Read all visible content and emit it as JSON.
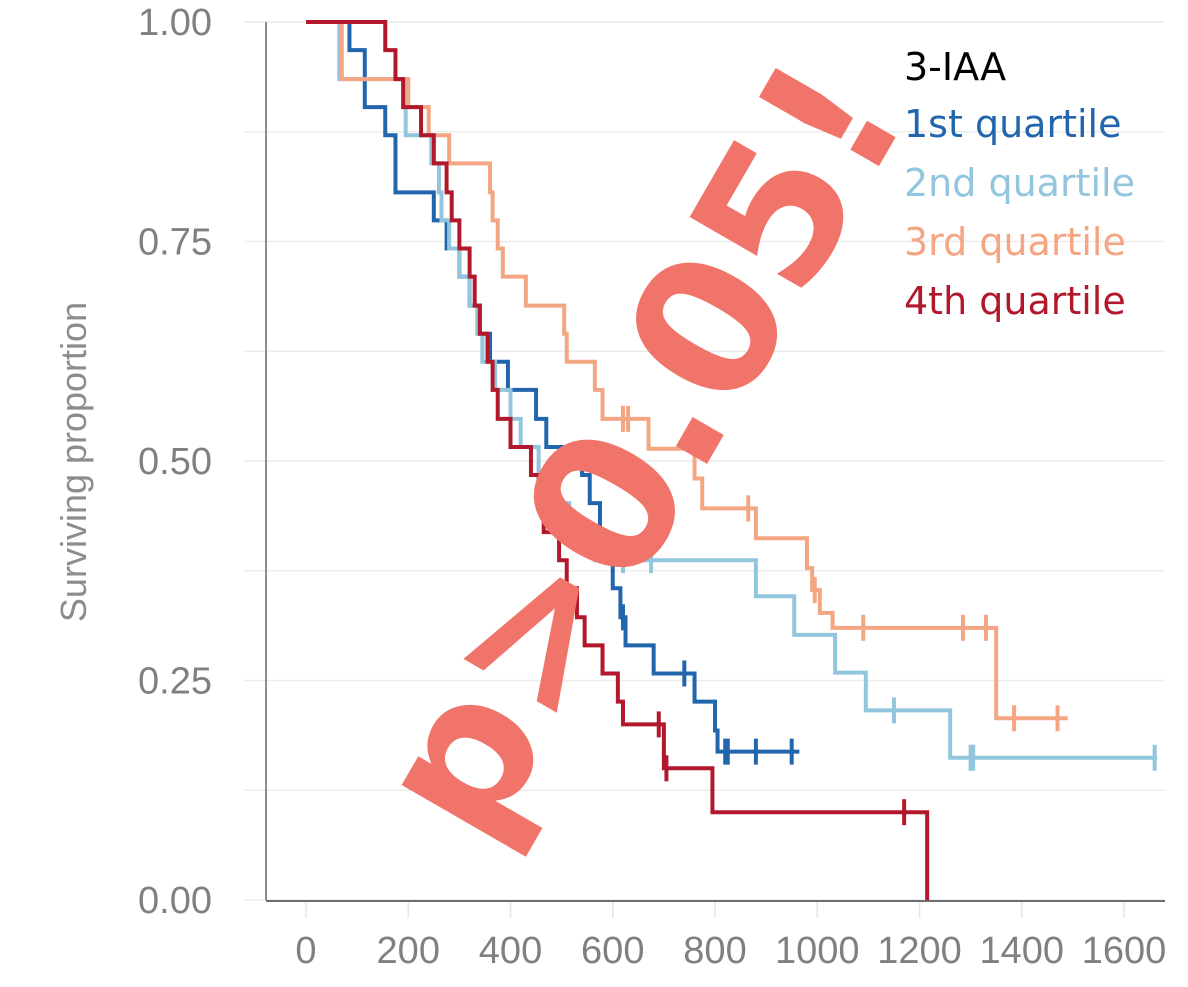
{
  "chart_data": {
    "type": "line",
    "subtype": "kaplan-meier-step",
    "title": "",
    "xlabel": "",
    "ylabel": "Surviving proportion",
    "xlim": [
      -80,
      1680
    ],
    "ylim": [
      0,
      1
    ],
    "x_ticks": [
      0,
      200,
      400,
      600,
      800,
      1000,
      1200,
      1400,
      1600
    ],
    "y_ticks": [
      0.0,
      0.25,
      0.5,
      0.75,
      1.0
    ],
    "y_tick_labels": [
      "0.00",
      "0.25",
      "0.50",
      "0.75",
      "1.00"
    ],
    "x_tick_labels": [
      "0",
      "200",
      "400",
      "600",
      "800",
      "1000",
      "1200",
      "1400",
      "1600"
    ],
    "grid": true,
    "legend": {
      "title": "3-IAA",
      "placement": "top-right",
      "title_color": "#000000"
    },
    "annotation": {
      "text": "p>0.05!",
      "color": "#f0746a",
      "rotation_deg": -60
    },
    "series": [
      {
        "name": "1st quartile",
        "color": "#2166ac",
        "steps": [
          [
            0,
            1.0
          ],
          [
            85,
            0.968
          ],
          [
            115,
            0.903
          ],
          [
            155,
            0.871
          ],
          [
            175,
            0.806
          ],
          [
            250,
            0.774
          ],
          [
            275,
            0.742
          ],
          [
            300,
            0.71
          ],
          [
            320,
            0.677
          ],
          [
            340,
            0.645
          ],
          [
            360,
            0.613
          ],
          [
            395,
            0.581
          ],
          [
            450,
            0.548
          ],
          [
            470,
            0.516
          ],
          [
            540,
            0.484
          ],
          [
            555,
            0.452
          ],
          [
            575,
            0.419
          ],
          [
            590,
            0.387
          ],
          [
            600,
            0.355
          ],
          [
            615,
            0.322
          ],
          [
            625,
            0.29
          ],
          [
            680,
            0.258
          ],
          [
            760,
            0.226
          ],
          [
            800,
            0.193
          ],
          [
            805,
            0.169
          ],
          [
            965,
            0.169
          ]
        ],
        "censor_times": [
          620,
          740,
          820,
          825,
          880,
          950
        ]
      },
      {
        "name": "2nd quartile",
        "color": "#92c5de",
        "steps": [
          [
            0,
            1.0
          ],
          [
            65,
            0.935
          ],
          [
            195,
            0.871
          ],
          [
            245,
            0.839
          ],
          [
            260,
            0.806
          ],
          [
            265,
            0.774
          ],
          [
            280,
            0.742
          ],
          [
            300,
            0.71
          ],
          [
            320,
            0.677
          ],
          [
            335,
            0.645
          ],
          [
            345,
            0.613
          ],
          [
            370,
            0.581
          ],
          [
            400,
            0.548
          ],
          [
            420,
            0.516
          ],
          [
            455,
            0.484
          ],
          [
            480,
            0.452
          ],
          [
            515,
            0.419
          ],
          [
            565,
            0.387
          ],
          [
            880,
            0.346
          ],
          [
            955,
            0.302
          ],
          [
            1035,
            0.259
          ],
          [
            1095,
            0.216
          ],
          [
            1260,
            0.162
          ],
          [
            1665,
            0.162
          ]
        ],
        "censor_times": [
          620,
          675,
          1150,
          1300,
          1305,
          1660
        ]
      },
      {
        "name": "3rd quartile",
        "color": "#f4a582",
        "steps": [
          [
            0,
            1.0
          ],
          [
            70,
            0.935
          ],
          [
            200,
            0.903
          ],
          [
            240,
            0.871
          ],
          [
            280,
            0.839
          ],
          [
            360,
            0.806
          ],
          [
            365,
            0.774
          ],
          [
            375,
            0.742
          ],
          [
            385,
            0.71
          ],
          [
            430,
            0.677
          ],
          [
            505,
            0.645
          ],
          [
            510,
            0.613
          ],
          [
            565,
            0.581
          ],
          [
            580,
            0.548
          ],
          [
            670,
            0.514
          ],
          [
            760,
            0.48
          ],
          [
            775,
            0.446
          ],
          [
            880,
            0.412
          ],
          [
            980,
            0.378
          ],
          [
            990,
            0.353
          ],
          [
            1005,
            0.327
          ],
          [
            1030,
            0.31
          ],
          [
            1350,
            0.207
          ],
          [
            1490,
            0.207
          ]
        ],
        "censor_times": [
          620,
          630,
          865,
          995,
          1090,
          1285,
          1330,
          1385,
          1470
        ]
      },
      {
        "name": "4th quartile",
        "color": "#b2182b",
        "steps": [
          [
            0,
            1.0
          ],
          [
            155,
            0.968
          ],
          [
            175,
            0.935
          ],
          [
            190,
            0.903
          ],
          [
            225,
            0.871
          ],
          [
            250,
            0.839
          ],
          [
            275,
            0.806
          ],
          [
            285,
            0.774
          ],
          [
            300,
            0.742
          ],
          [
            320,
            0.71
          ],
          [
            330,
            0.677
          ],
          [
            340,
            0.645
          ],
          [
            355,
            0.613
          ],
          [
            365,
            0.581
          ],
          [
            375,
            0.548
          ],
          [
            400,
            0.516
          ],
          [
            440,
            0.484
          ],
          [
            455,
            0.452
          ],
          [
            465,
            0.419
          ],
          [
            495,
            0.387
          ],
          [
            510,
            0.355
          ],
          [
            530,
            0.322
          ],
          [
            545,
            0.29
          ],
          [
            580,
            0.258
          ],
          [
            610,
            0.226
          ],
          [
            620,
            0.2
          ],
          [
            700,
            0.15
          ],
          [
            795,
            0.1
          ],
          [
            1215,
            0.0
          ]
        ],
        "censor_times": [
          690,
          705,
          1170
        ]
      }
    ]
  }
}
